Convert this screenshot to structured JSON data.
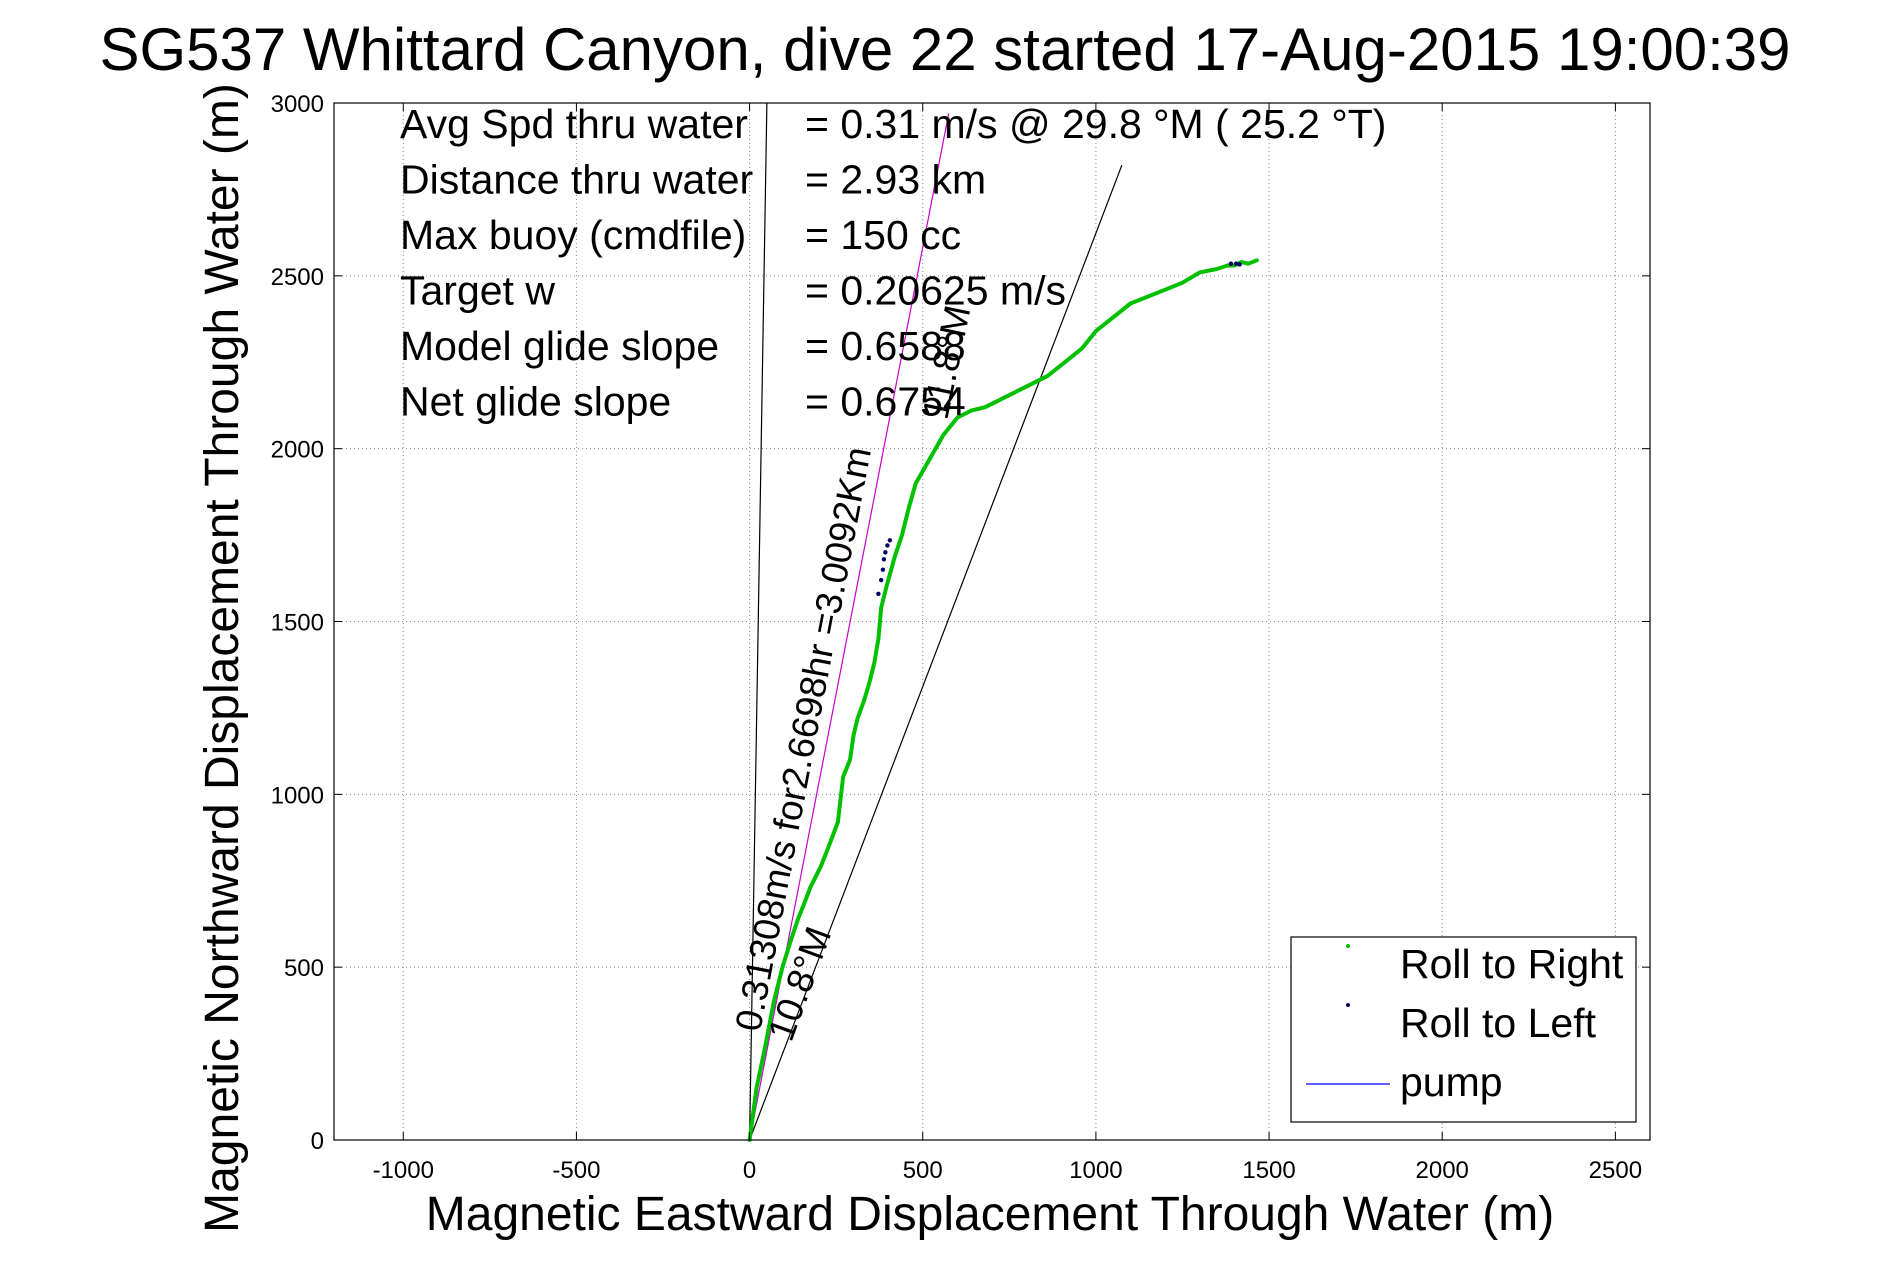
{
  "chart_data": {
    "type": "line",
    "title": "SG537 Whittard Canyon, dive 22 started 17-Aug-2015 19:00:39",
    "xlabel": "Magnetic Eastward Displacement Through Water (m)",
    "ylabel": "Magnetic Northward Displacement Through Water (m)",
    "xlim": [
      -1200,
      2600
    ],
    "ylim": [
      0,
      3000
    ],
    "xticks": [
      -1000,
      -500,
      0,
      500,
      1000,
      1500,
      2000,
      2500
    ],
    "yticks": [
      0,
      500,
      1000,
      1500,
      2000,
      2500,
      3000
    ],
    "grid": true,
    "legend_position": "bottom-right",
    "info_lines": [
      {
        "label": "Avg Spd thru water",
        "value": "=  0.31 m/s @  29.8 °M ( 25.2 °T)"
      },
      {
        "label": "Distance thru water",
        "value": "=  2.93 km"
      },
      {
        "label": "Max buoy (cmdfile)",
        "value": "= 150 cc"
      },
      {
        "label": "Target w",
        "value": "= 0.20625 m/s"
      },
      {
        "label": "Model glide slope",
        "value": "= 0.6588"
      },
      {
        "label": "Net glide slope",
        "value": "= 0.6754"
      }
    ],
    "annotations": [
      {
        "text": "0.31308m/s for2.6698hr =3.0092Km",
        "x": 30,
        "y": 310,
        "angle_deg": 10.8
      },
      {
        "text": "10.8°M",
        "x": 120,
        "y": 280,
        "angle_deg": 20.2
      },
      {
        "text": "11.8°M",
        "x": 570,
        "y": 2080,
        "angle_deg": 11.8
      }
    ],
    "series": [
      {
        "name": "Roll to Right",
        "color": "#00c000",
        "x": [
          0,
          20,
          45,
          70,
          95,
          120,
          140,
          160,
          175,
          190,
          205,
          225,
          240,
          255,
          262,
          270,
          290,
          300,
          312,
          330,
          345,
          360,
          372,
          380,
          395,
          420,
          440,
          460,
          480,
          520,
          560,
          600,
          640,
          680,
          720,
          800,
          860,
          910,
          960,
          1000,
          1050,
          1100,
          1150,
          1200,
          1250,
          1300,
          1350,
          1380,
          1400,
          1420,
          1440,
          1465
        ],
        "y": [
          0,
          150,
          270,
          400,
          500,
          580,
          640,
          690,
          730,
          760,
          790,
          840,
          880,
          920,
          980,
          1050,
          1100,
          1170,
          1220,
          1270,
          1320,
          1380,
          1450,
          1540,
          1600,
          1690,
          1750,
          1830,
          1900,
          1970,
          2040,
          2090,
          2110,
          2120,
          2140,
          2180,
          2210,
          2250,
          2290,
          2340,
          2380,
          2420,
          2440,
          2460,
          2480,
          2510,
          2520,
          2530,
          2530,
          2540,
          2535,
          2545
        ]
      },
      {
        "name": "Roll to Left",
        "color": "#000060",
        "x": [
          372,
          380,
          385,
          388,
          392,
          398,
          405,
          1390,
          1405,
          1415
        ],
        "y": [
          1580,
          1620,
          1650,
          1680,
          1700,
          1720,
          1735,
          2535,
          2535,
          2533
        ]
      },
      {
        "name": "pump",
        "color": "#0000ff",
        "x": [],
        "y": []
      }
    ],
    "reference_lines": [
      {
        "name": "heading 1",
        "color": "#000000",
        "x": [
          0,
          50
        ],
        "y": [
          0,
          3000
        ]
      },
      {
        "name": "heading 2",
        "color": "#000000",
        "x": [
          0,
          1075
        ],
        "y": [
          0,
          2820
        ]
      },
      {
        "name": "heading 3",
        "color": "#cc00cc",
        "x": [
          0,
          575
        ],
        "y": [
          0,
          2970
        ]
      }
    ]
  }
}
